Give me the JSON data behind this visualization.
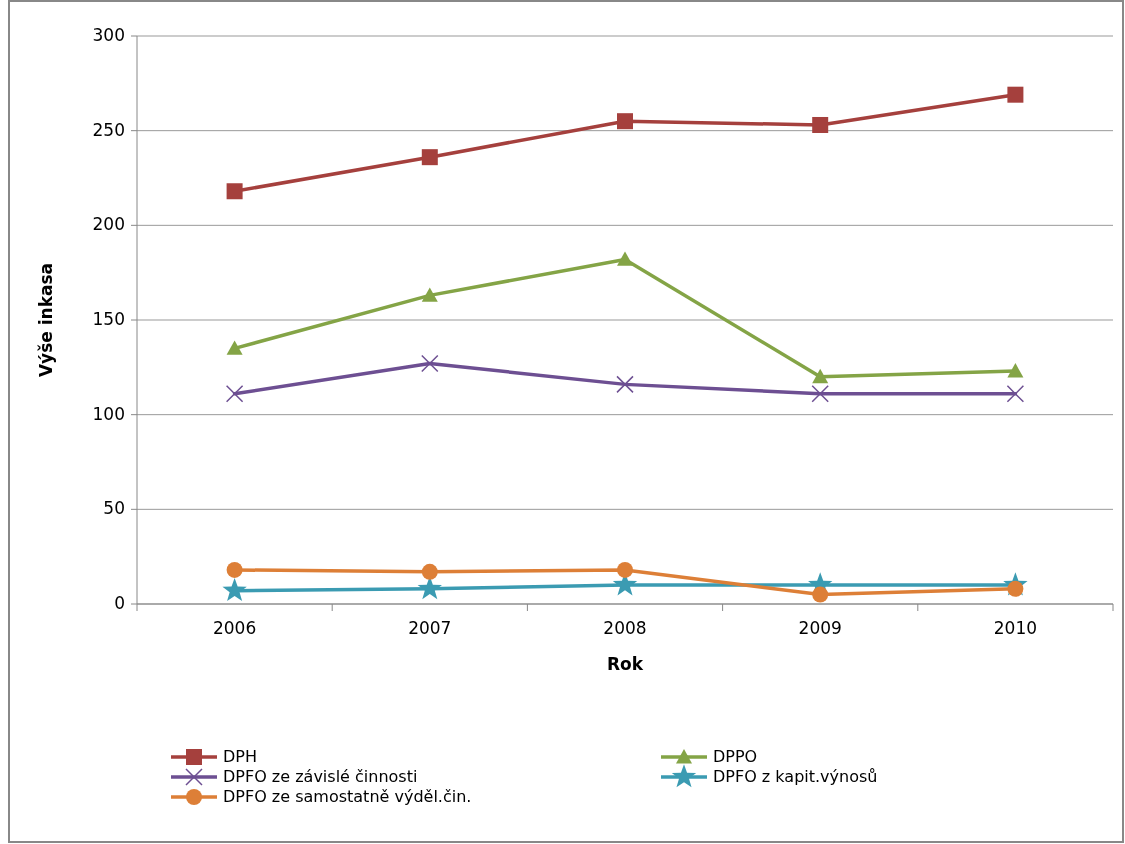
{
  "chart_data": {
    "type": "line",
    "xlabel": "Rok",
    "ylabel": "Výše inkasa",
    "categories": [
      "2006",
      "2007",
      "2008",
      "2009",
      "2010"
    ],
    "ylim": [
      0,
      300
    ],
    "yticks": [
      0,
      50,
      100,
      150,
      200,
      250,
      300
    ],
    "grid": "y",
    "legend": "bottom",
    "series": [
      {
        "name": "DPH",
        "color": "#a5403d",
        "marker": "square",
        "values": [
          218,
          236,
          255,
          253,
          269
        ]
      },
      {
        "name": "DPPO",
        "color": "#84a446",
        "marker": "triangle",
        "values": [
          135,
          163,
          182,
          120,
          123
        ]
      },
      {
        "name": "DPFO ze závislé činnosti",
        "color": "#6d4f92",
        "marker": "cross",
        "values": [
          111,
          127,
          116,
          111,
          111
        ]
      },
      {
        "name": "DPFO z kapit.výnosů",
        "color": "#3b9bb2",
        "marker": "star",
        "values": [
          7,
          8,
          10,
          10,
          10
        ]
      },
      {
        "name": "DPFO ze samostatně výděl.čin.",
        "color": "#dd7f37",
        "marker": "circle",
        "values": [
          18,
          17,
          18,
          5,
          8
        ]
      }
    ]
  }
}
